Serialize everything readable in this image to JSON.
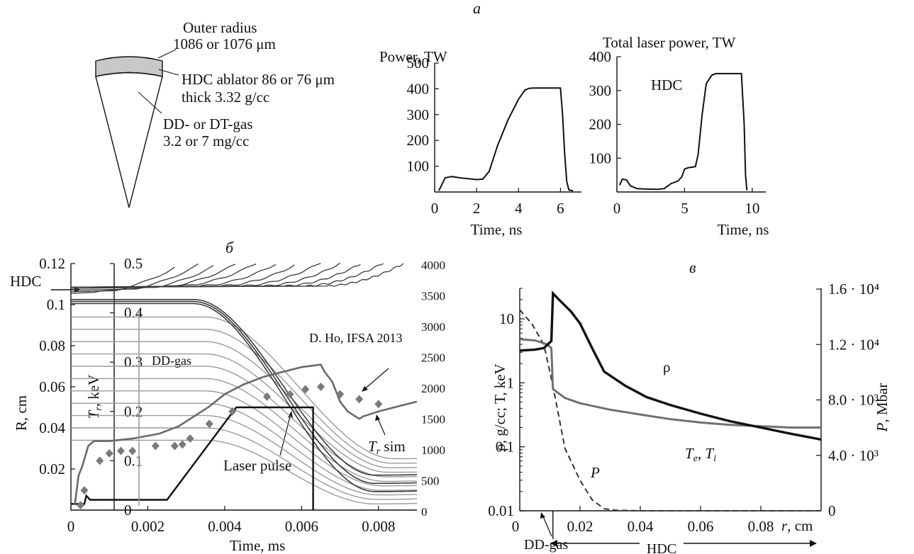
{
  "panel_labels": {
    "a": "а",
    "b": "б",
    "c": "в"
  },
  "schematic": {
    "outer_radius_line1": "Outer radius",
    "outer_radius_line2": "1086 or 1076 μm",
    "ablator_line1": "HDC ablator 86 or 76 μm",
    "ablator_line2": "thick 3.32 g/cc",
    "gas_line1": "DD- or DT-gas",
    "gas_line2": "3.2 or 7 mg/cc",
    "shell_color": "#c8c8c8"
  },
  "chart_data": [
    {
      "id": "power",
      "type": "line",
      "title": "Power, TW",
      "xlabel": "Time, ns",
      "xlim": [
        0,
        7
      ],
      "ylim": [
        0,
        500
      ],
      "xticks": [
        0,
        2,
        4,
        6
      ],
      "yticks": [
        100,
        200,
        300,
        400,
        500
      ],
      "x": [
        0.2,
        0.35,
        0.5,
        0.8,
        1.2,
        2.0,
        2.3,
        2.6,
        3.0,
        3.5,
        4.0,
        4.3,
        4.5,
        4.7,
        5.0,
        6.0,
        6.1,
        6.2,
        6.3,
        6.4,
        6.6
      ],
      "y": [
        5,
        30,
        55,
        60,
        55,
        48,
        50,
        80,
        180,
        280,
        360,
        395,
        402,
        403,
        403,
        403,
        300,
        150,
        40,
        8,
        5
      ]
    },
    {
      "id": "laser",
      "type": "line",
      "title": "Total laser power, TW",
      "annotation": "HDC",
      "xlabel": "Time, ns",
      "xlim": [
        0,
        11
      ],
      "ylim": [
        0,
        400
      ],
      "xticks": [
        0,
        5,
        10
      ],
      "yticks": [
        100,
        200,
        300,
        400
      ],
      "x": [
        0.2,
        0.4,
        0.7,
        1.0,
        1.5,
        2.0,
        3.0,
        3.5,
        4.0,
        4.5,
        4.8,
        5.0,
        5.3,
        5.8,
        6.0,
        6.3,
        6.6,
        7.0,
        7.3,
        7.6,
        9.2,
        9.4,
        9.5,
        9.6
      ],
      "y": [
        20,
        38,
        36,
        18,
        10,
        9,
        8,
        10,
        25,
        32,
        45,
        68,
        72,
        75,
        110,
        230,
        320,
        345,
        350,
        350,
        350,
        200,
        50,
        5
      ]
    },
    {
      "id": "trajectories",
      "type": "line",
      "xlabel": "Time, ms",
      "ylabel": "R, cm",
      "ylabel2": "T_r, keV",
      "xlim": [
        0,
        0.009
      ],
      "ylim": [
        0,
        0.12
      ],
      "xticks": [
        0,
        0.002,
        0.004,
        0.006,
        0.008
      ],
      "yticks": [
        0.02,
        0.04,
        0.06,
        0.08,
        0.1,
        0.12
      ],
      "tr_ticks": [
        0,
        0.1,
        0.2,
        0.3,
        0.4,
        0.5
      ],
      "right_ticks": [
        0,
        500,
        1000,
        1500,
        2000,
        2500,
        3000,
        3500,
        4000
      ],
      "labels": {
        "hdc": "HDC",
        "dd_gas": "DD-gas",
        "ho": "D. Ho, IFSA 2013",
        "tr_sim": "T_r sim",
        "laser_pulse": "Laser pulse"
      },
      "laser_pulse": {
        "t": [
          0,
          0.00035,
          0.0004,
          0.0005,
          0.0025,
          0.0043,
          0.0063,
          0.0063
        ],
        "r": [
          0.003,
          0.003,
          0.007,
          0.005,
          0.005,
          0.05,
          0.05,
          0
        ]
      },
      "tr_sim": {
        "t": [
          0.0001,
          0.0002,
          0.0003,
          0.00045,
          0.0006,
          0.001,
          0.0016,
          0.0023,
          0.0028,
          0.0032,
          0.0036,
          0.004,
          0.0045,
          0.005,
          0.0055,
          0.006,
          0.0065,
          0.0066,
          0.0068,
          0.007,
          0.0072,
          0.0074,
          0.0075,
          0.0076,
          0.0078,
          0.008,
          0.0085,
          0.009
        ],
        "tr": [
          0.01,
          0.07,
          0.09,
          0.13,
          0.14,
          0.14,
          0.145,
          0.155,
          0.17,
          0.19,
          0.21,
          0.235,
          0.255,
          0.27,
          0.28,
          0.29,
          0.295,
          0.28,
          0.26,
          0.22,
          0.2,
          0.19,
          0.185,
          0.19,
          0.195,
          0.2,
          0.21,
          0.22
        ]
      },
      "ho_data": {
        "t": [
          0.00025,
          0.00035,
          0.00075,
          0.001,
          0.0013,
          0.0016,
          0.0022,
          0.0027,
          0.0029,
          0.0031,
          0.0036,
          0.0042,
          0.0051,
          0.0057,
          0.0061,
          0.0065,
          0.007,
          0.0075,
          0.008
        ],
        "tr": [
          0.01,
          0.04,
          0.1,
          0.115,
          0.12,
          0.12,
          0.13,
          0.13,
          0.133,
          0.145,
          0.175,
          0.2,
          0.23,
          0.235,
          0.245,
          0.25,
          0.235,
          0.225,
          0.215
        ]
      },
      "color_dark": "#3a3a3a",
      "color_grey": "#6a6a6a",
      "color_light": "#9a9a9a",
      "color_markers": "#7a7a7a"
    },
    {
      "id": "profiles",
      "type": "line",
      "xlabel": "r, cm",
      "ylabel": "ρ, g/cc; T, keV",
      "ylabel2": "P, Mbar",
      "x_scale": "linear",
      "y_scale": "log",
      "xlim": [
        0,
        0.1
      ],
      "ylim": [
        0.01,
        30
      ],
      "xticks": [
        0,
        0.02,
        0.04,
        0.06,
        0.08
      ],
      "yticks": [
        0.01,
        0.1,
        1,
        10
      ],
      "right_ticks": [
        {
          "value": 0,
          "label": "0"
        },
        {
          "value": 4000,
          "label": "4.0 · 10³"
        },
        {
          "value": 8000,
          "label": "8.0 · 10³"
        },
        {
          "value": 12000,
          "label": "1.2 · 10⁴"
        },
        {
          "value": 16000,
          "label": "1.6 · 10⁴"
        }
      ],
      "labels": {
        "rho": "ρ",
        "te_ti": "T_e, T_i",
        "p": "P",
        "dd_gas": "DD-gas",
        "hdc": "HDC"
      },
      "rho": {
        "r": [
          0,
          0.005,
          0.008,
          0.0105,
          0.011,
          0.013,
          0.017,
          0.02,
          0.024,
          0.028,
          0.035,
          0.042,
          0.05,
          0.06,
          0.07,
          0.08,
          0.09,
          0.1
        ],
        "v": [
          3.2,
          3.3,
          3.5,
          4.5,
          25,
          20,
          13,
          8.5,
          3.5,
          1.5,
          0.9,
          0.6,
          0.45,
          0.33,
          0.25,
          0.2,
          0.16,
          0.13
        ]
      },
      "temperature": {
        "r": [
          0,
          0.005,
          0.009,
          0.0105,
          0.011,
          0.015,
          0.02,
          0.03,
          0.04,
          0.05,
          0.06,
          0.07,
          0.08,
          0.09,
          0.1
        ],
        "v": [
          4.8,
          4.6,
          4.0,
          3.5,
          0.8,
          0.58,
          0.48,
          0.38,
          0.32,
          0.27,
          0.24,
          0.22,
          0.21,
          0.2,
          0.2
        ]
      },
      "pressure": {
        "r": [
          0,
          0.004,
          0.008,
          0.011,
          0.015,
          0.02,
          0.024,
          0.028,
          0.032,
          0.04,
          0.06,
          0.08,
          0.1
        ],
        "v": [
          14500,
          13500,
          12000,
          9000,
          4500,
          2200,
          800,
          150,
          40,
          0,
          0,
          0,
          0
        ]
      },
      "color_rho": "#111111",
      "color_t": "#707070",
      "color_p": "#333333"
    }
  ]
}
